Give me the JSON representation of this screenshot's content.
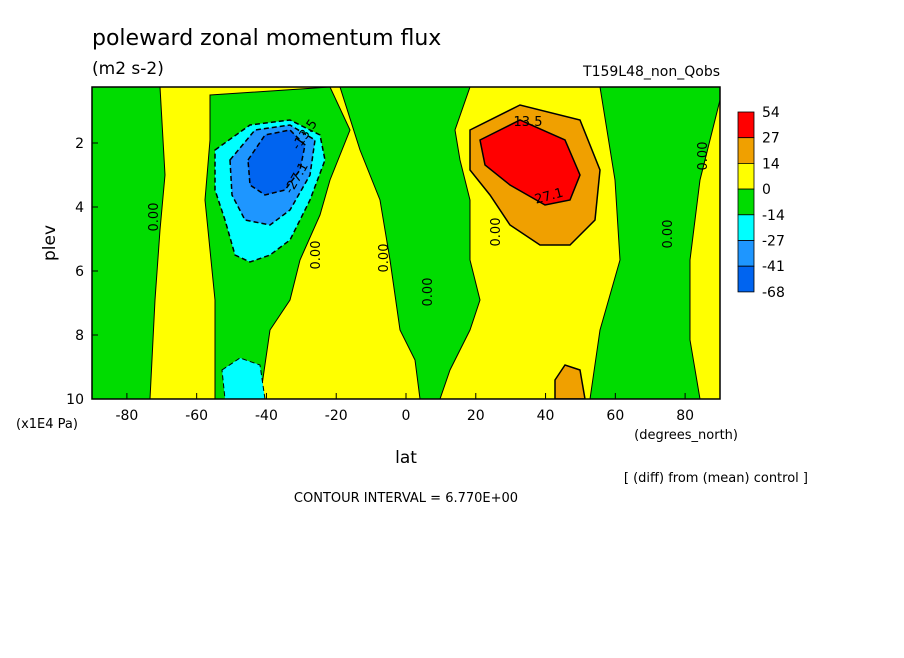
{
  "chart_data": {
    "type": "contour",
    "title": "poleward zonal momentum flux",
    "subtitle": "(m2 s-2)",
    "run_label": "T159L48_non_Qobs",
    "x_label": "lat",
    "x_unit": "(degrees_north)",
    "y_label": "plev",
    "y_unit": "(x1E4 Pa)",
    "xlim": [
      -90,
      90
    ],
    "xticks": [
      -80,
      -60,
      -40,
      -20,
      0,
      20,
      40,
      60,
      80
    ],
    "ylim": [
      10,
      0.25
    ],
    "yticks": [
      2,
      4,
      6,
      8,
      10
    ],
    "colorbar": {
      "levels": [
        54,
        27,
        14,
        0,
        -14,
        -27,
        -41,
        -68
      ],
      "colors": [
        "#ff0000",
        "#f0a000",
        "#ffff00",
        "#00dc00",
        "#00ffff",
        "#1e96ff",
        "#0064f0"
      ]
    },
    "contour_labels": [
      "-13.5",
      "-27.1",
      "13.5",
      "27.1",
      "0.00",
      "0.00",
      "0.00",
      "0.00",
      "0.00",
      "0.00",
      "0.00"
    ],
    "note": "[ (diff) from (mean) control ]",
    "footer": "CONTOUR INTERVAL = 6.770E+00"
  }
}
